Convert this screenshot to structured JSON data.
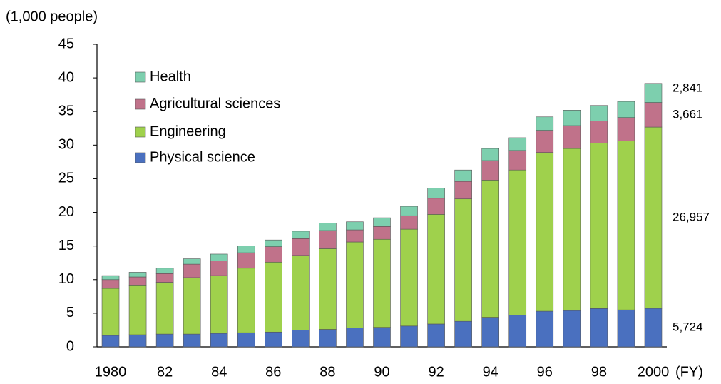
{
  "chart_data": {
    "type": "stacked_bar",
    "y_label": "(1,000 people)",
    "x_label": "(FY)",
    "categories": [
      "1980",
      null,
      "82",
      null,
      "84",
      null,
      "86",
      null,
      "88",
      null,
      "90",
      null,
      "92",
      null,
      "94",
      null,
      "96",
      null,
      "98",
      null,
      "2000"
    ],
    "series": [
      {
        "name": "Physical science",
        "color": "#4a70bf",
        "values": [
          1.7,
          1.8,
          1.9,
          1.9,
          2.0,
          2.1,
          2.2,
          2.5,
          2.6,
          2.8,
          2.9,
          3.1,
          3.4,
          3.8,
          4.4,
          4.7,
          5.3,
          5.4,
          5.7,
          5.5,
          5.724
        ],
        "value_labels": [
          null,
          null,
          null,
          null,
          null,
          null,
          null,
          null,
          null,
          null,
          null,
          null,
          null,
          null,
          null,
          null,
          null,
          null,
          null,
          null,
          "5,724"
        ]
      },
      {
        "name": "Engineering",
        "color": "#9fd14c",
        "values": [
          7.0,
          7.4,
          7.7,
          8.4,
          8.6,
          9.6,
          10.4,
          11.1,
          12.0,
          12.8,
          13.1,
          14.4,
          16.3,
          18.2,
          20.4,
          21.6,
          23.6,
          24.1,
          24.6,
          25.1,
          26.957
        ],
        "value_labels": [
          null,
          null,
          null,
          null,
          null,
          null,
          null,
          null,
          null,
          null,
          null,
          null,
          null,
          null,
          null,
          null,
          null,
          null,
          null,
          null,
          "26,957"
        ]
      },
      {
        "name": "Agricultural sciences",
        "color": "#c0728a",
        "values": [
          1.3,
          1.2,
          1.3,
          2.0,
          2.2,
          2.3,
          2.3,
          2.5,
          2.7,
          1.8,
          1.9,
          2.0,
          2.4,
          2.6,
          2.9,
          2.9,
          3.3,
          3.4,
          3.3,
          3.5,
          3.661
        ],
        "value_labels": [
          null,
          null,
          null,
          null,
          null,
          null,
          null,
          null,
          null,
          null,
          null,
          null,
          null,
          null,
          null,
          null,
          null,
          null,
          null,
          null,
          "3,661"
        ]
      },
      {
        "name": "Health",
        "color": "#7dcfae",
        "values": [
          0.6,
          0.7,
          0.8,
          0.8,
          1.0,
          1.0,
          1.0,
          1.1,
          1.1,
          1.2,
          1.3,
          1.4,
          1.5,
          1.7,
          1.8,
          1.9,
          2.0,
          2.3,
          2.3,
          2.4,
          2.841
        ],
        "value_labels": [
          null,
          null,
          null,
          null,
          null,
          null,
          null,
          null,
          null,
          null,
          null,
          null,
          null,
          null,
          null,
          null,
          null,
          null,
          null,
          null,
          "2,841"
        ]
      }
    ],
    "ylim": [
      0,
      45
    ],
    "yticks": [
      0,
      5,
      10,
      15,
      20,
      25,
      30,
      35,
      40,
      45
    ],
    "legend": "upper left",
    "grid": false
  }
}
